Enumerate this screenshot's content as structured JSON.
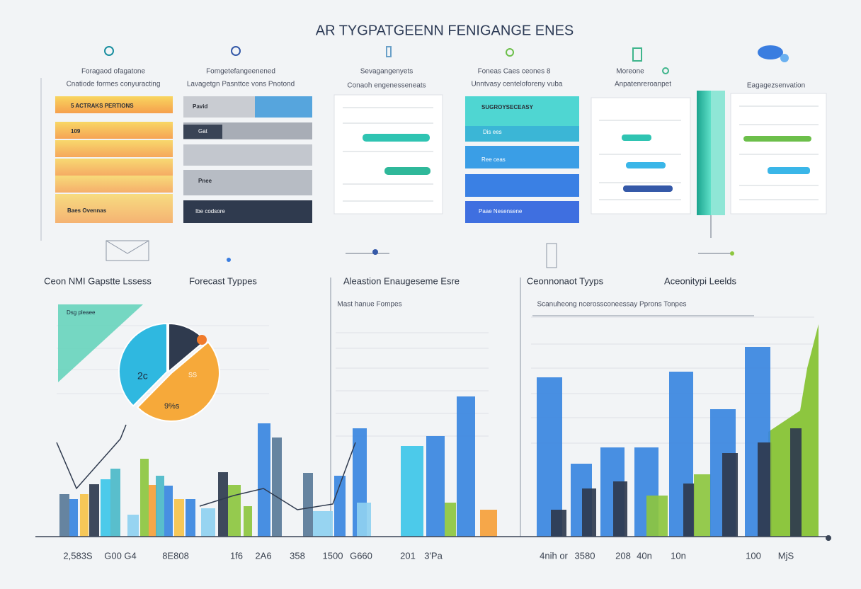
{
  "title": "AR TYGPATGEENN FENIGANGE ENES",
  "top_panels": [
    {
      "heading": "Foragaod ofagatone",
      "subheading": "Cnatiode formes conyuracting",
      "labels": [
        "5 ACTRAKS PERTIONS",
        "109",
        "Baes Ovennas"
      ]
    },
    {
      "heading": "Fomgetefangeenened",
      "subheading": "Lavagetgn Pasnttce vons Pnotond",
      "labels": [
        "Pavid",
        "Gat",
        "Pnee",
        "Ibe codsore"
      ]
    },
    {
      "heading": "Sevagangenyets",
      "subheading": "Conaoh engenesseneats",
      "labels": []
    },
    {
      "heading": "Foneas Caes ceones 8",
      "subheading": "Unntvasy centeloforeny vuba",
      "labels": [
        "SUGROYSECEASY",
        "Dis ees",
        "Ree ceas",
        "Paae Nesensene"
      ]
    },
    {
      "heading": "Moreone",
      "subheading": "Anpatenreroanpet",
      "labels": []
    },
    {
      "heading": "Eagagezsenvation",
      "subheading": "",
      "labels": []
    }
  ],
  "bottom_panels": [
    {
      "heading": "Ceon NMI Gapstte Lssess"
    },
    {
      "heading": "Forecast Typpes"
    },
    {
      "heading": "Aleastion Enaugeseme Esre",
      "subheading": "Mast hanue Fompes"
    },
    {
      "heading": "Ceonnonaot Tyyps",
      "subheading": "Scanuheong ncerossconeessay Pprons Tonpes"
    },
    {
      "heading": "Aceonitypi Leelds"
    }
  ],
  "pie_labels": [
    "2c",
    "SS",
    "9%s",
    "Dsg pleaee"
  ],
  "axis_labels": [
    "2,583S",
    "G00 G4",
    "8E808",
    "1f6",
    "2A6",
    "358",
    "1500",
    "G660",
    "201",
    "3'Pa",
    "4nih or",
    "3580",
    "208",
    "40n",
    "10n",
    "100",
    "MjS"
  ]
}
